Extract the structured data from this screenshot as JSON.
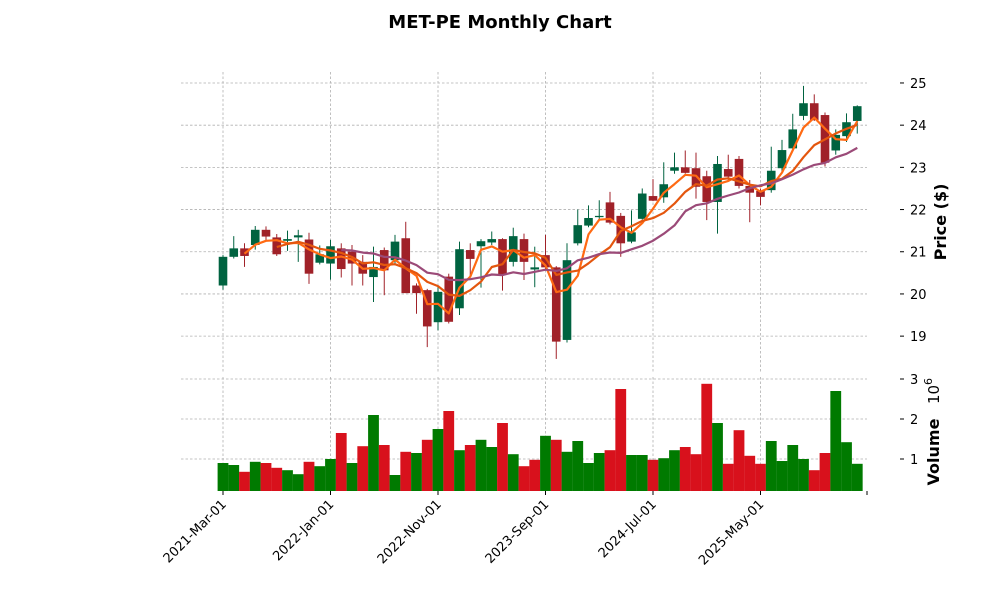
{
  "chart_data": {
    "type": "candlestick",
    "title": "MET-PE Monthly Chart",
    "ylabel": "Price ($)",
    "volume_label": "Volume",
    "volume_exponent": "10",
    "volume_exponent_power": "6",
    "ylim": [
      18.15,
      25.26
    ],
    "volume_ylim": [
      0.2,
      3.05
    ],
    "price_ticks": [
      "19",
      "20",
      "21",
      "22",
      "23",
      "24",
      "25"
    ],
    "volume_ticks": [
      "1",
      "2",
      "3"
    ],
    "x_tick_labels": [
      {
        "index": 0,
        "label": "2021-Mar-01"
      },
      {
        "index": 10,
        "label": "2022-Jan-01"
      },
      {
        "index": 20,
        "label": "2022-Nov-01"
      },
      {
        "index": 30,
        "label": "2023-Sep-01"
      },
      {
        "index": 40,
        "label": "2024-Jul-01"
      },
      {
        "index": 50,
        "label": "2025-May-01"
      }
    ],
    "moving_averages": [
      3,
      6,
      12
    ],
    "colors": {
      "up": "#006340",
      "down": "#a02128",
      "vol_up": "#007a00",
      "vol_down": "#d8111c",
      "mav": [
        "#ff6a13",
        "#e4560e",
        "#9b4a78"
      ]
    },
    "ohlc": [
      [
        20.2,
        20.92,
        20.1,
        20.88
      ],
      [
        20.88,
        21.37,
        20.84,
        21.08
      ],
      [
        21.08,
        21.2,
        20.64,
        20.9
      ],
      [
        21.16,
        21.61,
        21.05,
        21.52
      ],
      [
        21.52,
        21.6,
        21.26,
        21.36
      ],
      [
        21.34,
        21.42,
        20.9,
        20.94
      ],
      [
        21.26,
        21.5,
        21.02,
        21.3
      ],
      [
        21.34,
        21.52,
        20.76,
        21.39
      ],
      [
        21.29,
        21.45,
        20.24,
        20.48
      ],
      [
        20.74,
        21.15,
        20.7,
        20.94
      ],
      [
        20.72,
        21.28,
        20.34,
        21.13
      ],
      [
        21.08,
        21.2,
        20.39,
        20.59
      ],
      [
        21.0,
        21.16,
        20.2,
        20.72
      ],
      [
        20.76,
        20.92,
        20.2,
        20.48
      ],
      [
        20.4,
        21.12,
        19.81,
        20.64
      ],
      [
        21.04,
        21.1,
        19.97,
        20.56
      ],
      [
        20.8,
        21.4,
        20.68,
        21.24
      ],
      [
        21.32,
        21.71,
        20.02,
        20.02
      ],
      [
        20.2,
        20.25,
        19.53,
        20.02
      ],
      [
        20.09,
        20.12,
        18.74,
        19.23
      ],
      [
        19.33,
        20.2,
        19.14,
        20.05
      ],
      [
        20.41,
        20.48,
        19.3,
        19.34
      ],
      [
        19.66,
        21.24,
        19.5,
        21.06
      ],
      [
        21.04,
        21.2,
        20.41,
        20.83
      ],
      [
        21.13,
        21.3,
        20.15,
        21.25
      ],
      [
        21.22,
        21.48,
        21.16,
        21.3
      ],
      [
        21.3,
        21.32,
        20.08,
        20.45
      ],
      [
        20.76,
        21.57,
        20.65,
        21.37
      ],
      [
        21.3,
        21.43,
        20.33,
        20.76
      ],
      [
        20.58,
        21.12,
        20.16,
        20.63
      ],
      [
        20.92,
        21.4,
        20.56,
        20.63
      ],
      [
        20.63,
        20.66,
        18.46,
        18.87
      ],
      [
        18.91,
        21.2,
        18.85,
        20.8
      ],
      [
        21.2,
        22.0,
        21.15,
        21.63
      ],
      [
        21.62,
        22.1,
        21.58,
        21.8
      ],
      [
        21.82,
        22.22,
        21.78,
        21.85
      ],
      [
        22.17,
        22.42,
        21.65,
        21.69
      ],
      [
        21.85,
        21.92,
        20.88,
        21.2
      ],
      [
        21.24,
        21.98,
        21.2,
        21.46
      ],
      [
        21.78,
        22.5,
        21.76,
        22.38
      ],
      [
        22.32,
        22.72,
        22.2,
        22.21
      ],
      [
        22.29,
        23.12,
        22.16,
        22.6
      ],
      [
        22.92,
        23.35,
        22.85,
        23.0
      ],
      [
        23.0,
        23.4,
        22.85,
        22.87
      ],
      [
        22.98,
        23.35,
        22.26,
        22.54
      ],
      [
        22.79,
        22.92,
        21.75,
        22.18
      ],
      [
        22.18,
        23.27,
        21.43,
        23.08
      ],
      [
        22.96,
        23.3,
        22.7,
        22.78
      ],
      [
        23.2,
        23.27,
        22.5,
        22.56
      ],
      [
        22.56,
        22.7,
        21.7,
        22.4
      ],
      [
        22.44,
        22.5,
        22.1,
        22.3
      ],
      [
        22.46,
        23.49,
        22.4,
        22.92
      ],
      [
        22.98,
        23.65,
        22.9,
        23.41
      ],
      [
        23.45,
        24.27,
        23.4,
        23.9
      ],
      [
        24.22,
        24.93,
        24.12,
        24.52
      ],
      [
        24.52,
        24.73,
        24.1,
        24.12
      ],
      [
        24.24,
        24.3,
        23.02,
        23.11
      ],
      [
        23.4,
        23.9,
        23.3,
        23.77
      ],
      [
        23.74,
        24.28,
        23.6,
        24.07
      ],
      [
        24.1,
        24.47,
        23.8,
        24.45
      ]
    ],
    "volume": [
      0.9,
      0.85,
      0.68,
      0.93,
      0.9,
      0.78,
      0.72,
      0.62,
      0.93,
      0.82,
      1.0,
      1.65,
      0.9,
      1.32,
      2.1,
      1.35,
      0.6,
      1.18,
      1.15,
      1.48,
      1.75,
      2.2,
      1.22,
      1.35,
      1.48,
      1.3,
      1.9,
      1.12,
      0.82,
      0.98,
      1.58,
      1.48,
      1.18,
      1.45,
      0.9,
      1.15,
      1.22,
      2.75,
      1.1,
      1.1,
      0.98,
      1.02,
      1.22,
      1.3,
      1.12,
      2.88,
      1.9,
      0.88,
      1.72,
      1.08,
      0.88,
      1.45,
      0.95,
      1.35,
      1.0,
      0.72,
      1.15,
      2.7,
      1.42,
      0.88
    ]
  }
}
